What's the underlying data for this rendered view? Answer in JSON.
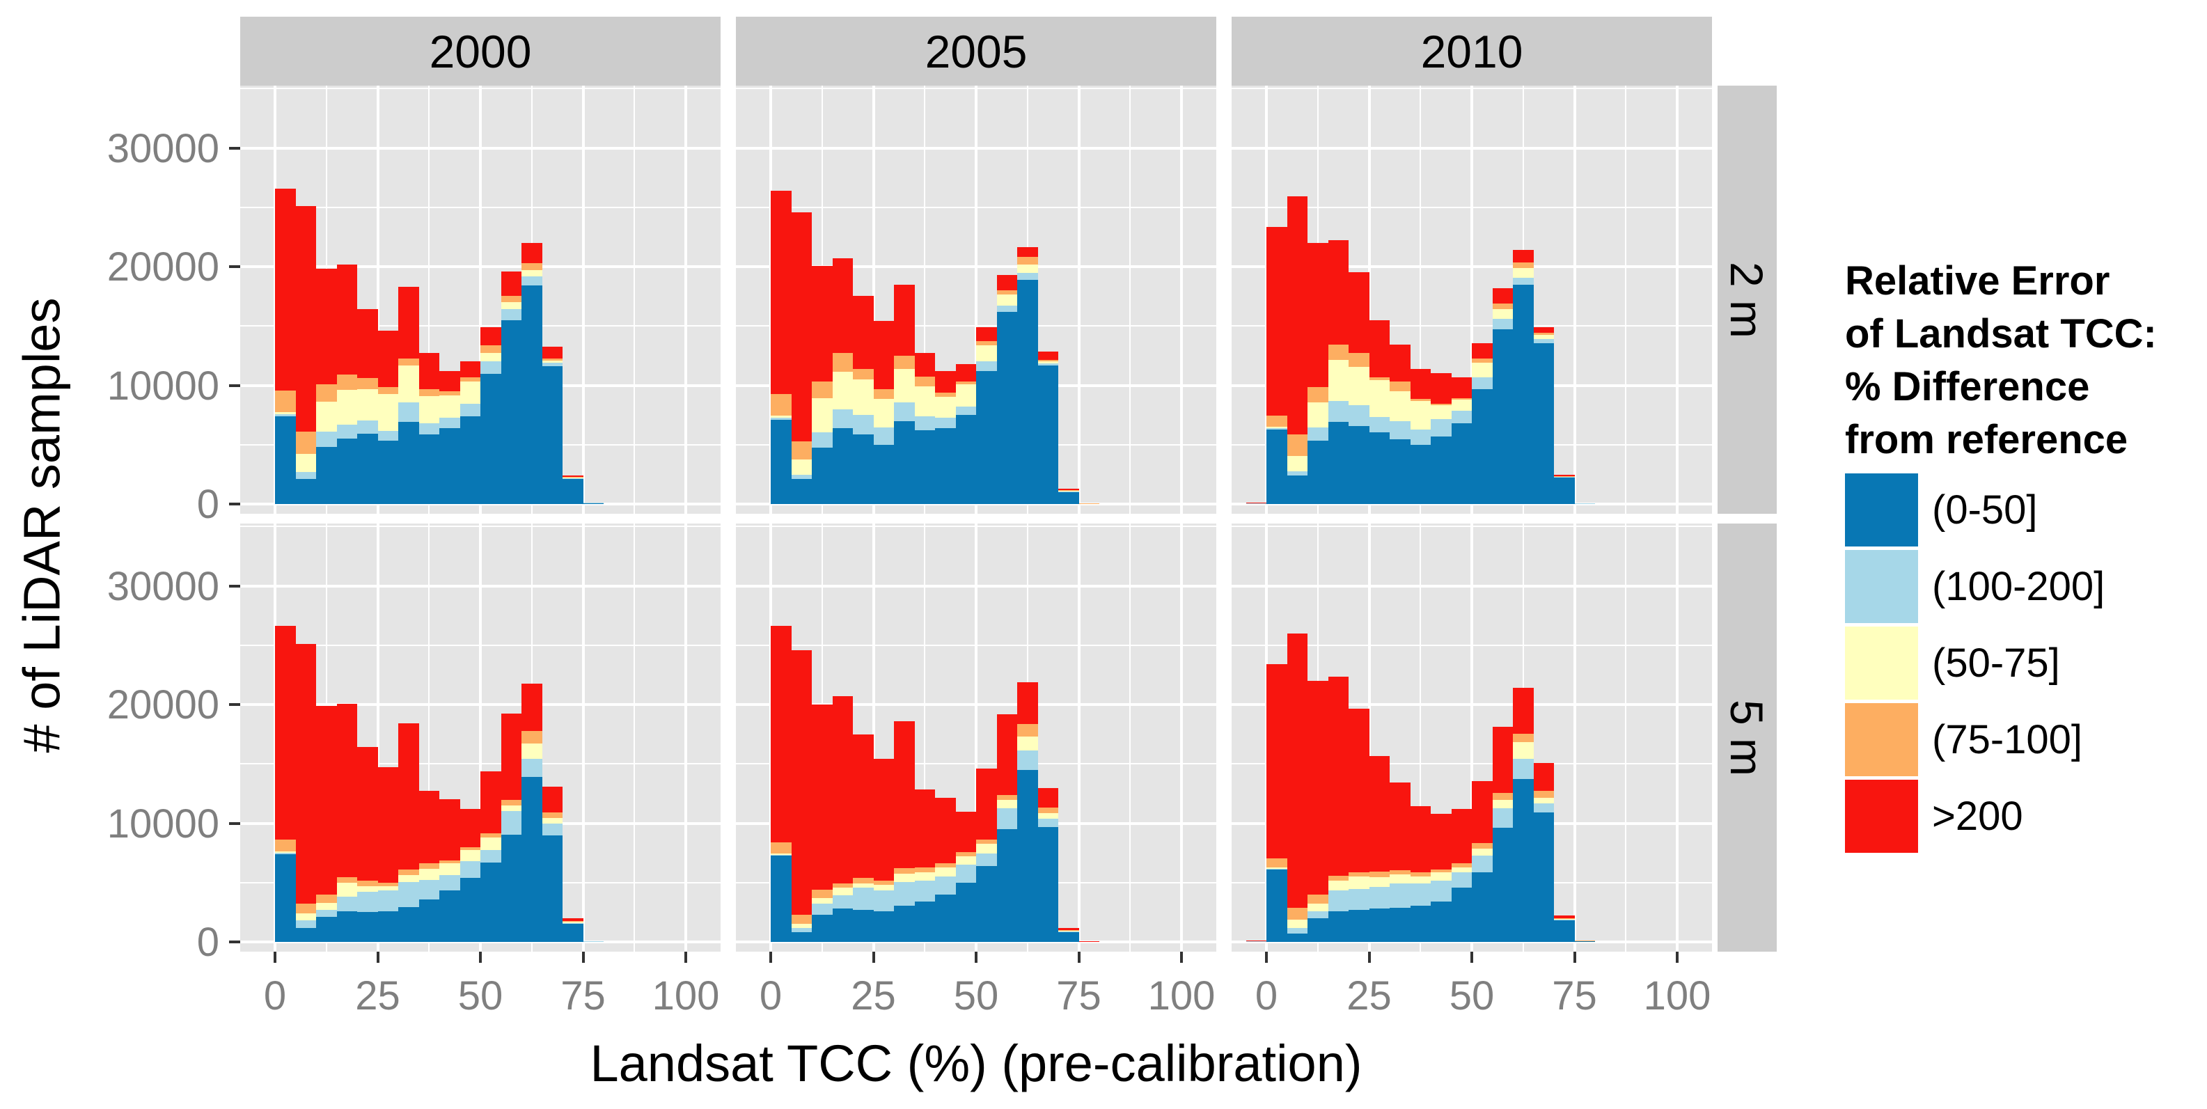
{
  "chart_data": {
    "type": "bar",
    "stacked": true,
    "title": "",
    "xlabel": "Landsat TCC (%) (pre-calibration)",
    "ylabel": "# of LiDAR samples",
    "grid": "on",
    "legend_position": "right",
    "col_facets": [
      "2000",
      "2005",
      "2010"
    ],
    "row_facets": [
      "2 m",
      "5 m"
    ],
    "x_tick_labels": [
      "0",
      "25",
      "50",
      "75",
      "100"
    ],
    "x_ticks": [
      0,
      25,
      50,
      75,
      100
    ],
    "x_minor_ticks": [
      12.5,
      37.5,
      62.5,
      87.5
    ],
    "y_tick_labels": [
      "30000",
      "20000",
      "10000",
      "0"
    ],
    "y_ticks": [
      30000,
      20000,
      10000,
      0
    ],
    "y_minor_ticks": [
      5000,
      15000,
      25000,
      35000
    ],
    "xlim": [
      -8.5,
      106
    ],
    "ylim": [
      0,
      35200
    ],
    "bin_width": 5,
    "bin_start": [
      -5,
      0,
      5,
      10,
      15,
      20,
      25,
      30,
      35,
      40,
      45,
      50,
      55,
      60,
      65,
      70,
      75
    ],
    "series_order": [
      "(0-50]",
      "(100-200]",
      "(50-75]",
      "(75-100]",
      ">200"
    ],
    "series_colors": {
      "(0-50]": "#0877B4",
      "(100-200]": "#A6D7E8",
      "(50-75]": "#FFFFBE",
      "(75-100]": "#FDAE61",
      ">200": "#F8150F"
    },
    "panel_background": "#E5E5E5",
    "strip_background": "#CCCCCC",
    "gridline_color": "#FFFFFF",
    "tick_label_color": "#7F7F7F",
    "tick_mark_color": "#333333",
    "panels": [
      {
        "facet_row": "2 m",
        "facet_col": "2000",
        "series": {
          "(0-50]": [
            0,
            7400,
            2100,
            4800,
            5500,
            5950,
            5350,
            6900,
            5850,
            6400,
            7400,
            10950,
            15500,
            18400,
            11600,
            2100,
            30
          ],
          "(100-200]": [
            0,
            150,
            600,
            1300,
            1200,
            1100,
            800,
            1650,
            950,
            850,
            1050,
            1050,
            950,
            750,
            280,
            50,
            60
          ],
          "(50-75]": [
            0,
            200,
            1500,
            2500,
            2900,
            2600,
            3100,
            3100,
            2300,
            1900,
            1900,
            700,
            550,
            570,
            230,
            80,
            0
          ],
          "(75-100]": [
            0,
            1800,
            1900,
            1500,
            1300,
            950,
            600,
            600,
            600,
            350,
            350,
            700,
            550,
            570,
            150,
            30,
            0
          ],
          ">200": [
            0,
            17000,
            19000,
            9700,
            9300,
            5800,
            4750,
            6050,
            3000,
            1700,
            1300,
            1500,
            2050,
            1700,
            980,
            150,
            0
          ]
        }
      },
      {
        "facet_row": "2 m",
        "facet_col": "2005",
        "series": {
          "(0-50]": [
            0,
            7100,
            2100,
            4750,
            6400,
            5850,
            5000,
            7000,
            6200,
            6400,
            7500,
            11200,
            16200,
            18900,
            11650,
            1050,
            50
          ],
          "(100-200]": [
            0,
            150,
            350,
            1300,
            1550,
            1650,
            1450,
            1550,
            1200,
            850,
            700,
            850,
            500,
            600,
            200,
            30,
            0
          ],
          "(50-75]": [
            0,
            200,
            1300,
            2850,
            3200,
            3000,
            2400,
            2850,
            2500,
            1800,
            1900,
            1300,
            950,
            700,
            200,
            40,
            0
          ],
          "(75-100]": [
            0,
            1800,
            1550,
            1400,
            1550,
            850,
            850,
            1100,
            850,
            350,
            250,
            350,
            350,
            600,
            100,
            60,
            30
          ],
          ">200": [
            0,
            17150,
            19300,
            9750,
            8000,
            6200,
            5700,
            5950,
            2000,
            1800,
            1450,
            1200,
            1300,
            850,
            700,
            120,
            0
          ]
        }
      },
      {
        "facet_row": "2 m",
        "facet_col": "2010",
        "series": {
          "(0-50]": [
            0,
            6300,
            2400,
            5350,
            6900,
            6550,
            6050,
            5450,
            5000,
            5700,
            6800,
            9650,
            14750,
            18450,
            13550,
            2250,
            40
          ],
          "(100-200]": [
            80,
            100,
            350,
            1100,
            1800,
            1800,
            1300,
            1550,
            1300,
            1450,
            1050,
            1050,
            850,
            600,
            350,
            30,
            40
          ],
          "(50-75]": [
            0,
            120,
            1300,
            2100,
            3450,
            3200,
            3100,
            2500,
            2400,
            1200,
            950,
            1200,
            850,
            850,
            350,
            40,
            0
          ],
          "(75-100]": [
            0,
            950,
            1800,
            1300,
            1300,
            1200,
            250,
            850,
            150,
            100,
            100,
            350,
            450,
            450,
            150,
            30,
            0
          ],
          ">200": [
            30,
            15850,
            20050,
            12150,
            8800,
            6800,
            4800,
            3100,
            2550,
            2600,
            1800,
            1300,
            1300,
            1050,
            500,
            100,
            0
          ]
        }
      },
      {
        "facet_row": "5 m",
        "facet_col": "2000",
        "series": {
          "(0-50]": [
            0,
            7400,
            1200,
            2100,
            2600,
            2500,
            2600,
            2950,
            3550,
            4350,
            5400,
            6700,
            9050,
            13900,
            8950,
            1550,
            30
          ],
          "(100-200]": [
            0,
            100,
            600,
            600,
            1200,
            1750,
            1750,
            2100,
            1650,
            1300,
            1400,
            1050,
            2000,
            1500,
            1000,
            50,
            50
          ],
          "(50-75]": [
            0,
            150,
            600,
            600,
            1200,
            450,
            350,
            600,
            950,
            950,
            950,
            1050,
            450,
            1300,
            500,
            100,
            0
          ],
          "(75-100]": [
            0,
            950,
            800,
            700,
            450,
            450,
            300,
            450,
            450,
            250,
            250,
            350,
            450,
            1050,
            450,
            50,
            0
          ],
          ">200": [
            0,
            18000,
            21900,
            15900,
            14600,
            11300,
            9700,
            12300,
            6100,
            5200,
            3200,
            5200,
            7300,
            4000,
            2150,
            250,
            0
          ]
        }
      },
      {
        "facet_row": "5 m",
        "facet_col": "2005",
        "series": {
          "(0-50]": [
            0,
            7250,
            800,
            2300,
            2800,
            2700,
            2600,
            3050,
            3400,
            4000,
            5000,
            6400,
            9500,
            14500,
            9700,
            850,
            30
          ],
          "(100-200]": [
            0,
            100,
            350,
            950,
            1150,
            1850,
            1750,
            2000,
            1750,
            1500,
            1500,
            1050,
            1750,
            1650,
            700,
            40,
            0
          ],
          "(50-75]": [
            0,
            100,
            350,
            450,
            600,
            350,
            450,
            700,
            700,
            800,
            700,
            800,
            700,
            1150,
            450,
            60,
            0
          ],
          "(75-100]": [
            0,
            950,
            800,
            700,
            350,
            500,
            350,
            450,
            450,
            350,
            350,
            350,
            450,
            1050,
            450,
            60,
            0
          ],
          ">200": [
            0,
            18200,
            22300,
            15600,
            15800,
            12050,
            10300,
            12400,
            6550,
            5500,
            3400,
            6000,
            6800,
            3500,
            1650,
            140,
            40
          ]
        }
      },
      {
        "facet_row": "5 m",
        "facet_col": "2010",
        "series": {
          "(0-50]": [
            0,
            6100,
            700,
            2000,
            2600,
            2700,
            2800,
            2900,
            3050,
            3400,
            4550,
            5850,
            9600,
            13700,
            10900,
            1800,
            60
          ],
          "(100-200]": [
            70,
            80,
            450,
            600,
            1750,
            1750,
            1850,
            2000,
            1850,
            1750,
            1300,
            1400,
            1650,
            1750,
            800,
            50,
            0
          ],
          "(50-75]": [
            0,
            80,
            700,
            600,
            800,
            1050,
            800,
            800,
            600,
            700,
            450,
            600,
            700,
            1400,
            450,
            80,
            0
          ],
          "(75-100]": [
            0,
            800,
            1050,
            800,
            450,
            350,
            500,
            350,
            350,
            250,
            350,
            450,
            600,
            700,
            600,
            70,
            30
          ],
          ">200": [
            40,
            16350,
            23100,
            18000,
            16750,
            13800,
            9700,
            7400,
            5600,
            4700,
            4550,
            5250,
            5600,
            3850,
            2350,
            200,
            0
          ]
        }
      }
    ],
    "legend": {
      "title_lines": [
        "Relative Error",
        "of Landsat TCC:",
        "% Difference",
        "from reference"
      ],
      "entries": [
        {
          "label": "(0-50]",
          "color": "#0877B4"
        },
        {
          "label": "(100-200]",
          "color": "#A6D7E8"
        },
        {
          "label": "(50-75]",
          "color": "#FFFFBE"
        },
        {
          "label": "(75-100]",
          "color": "#FDAE61"
        },
        {
          "label": ">200",
          "color": "#F8150F"
        }
      ]
    }
  }
}
